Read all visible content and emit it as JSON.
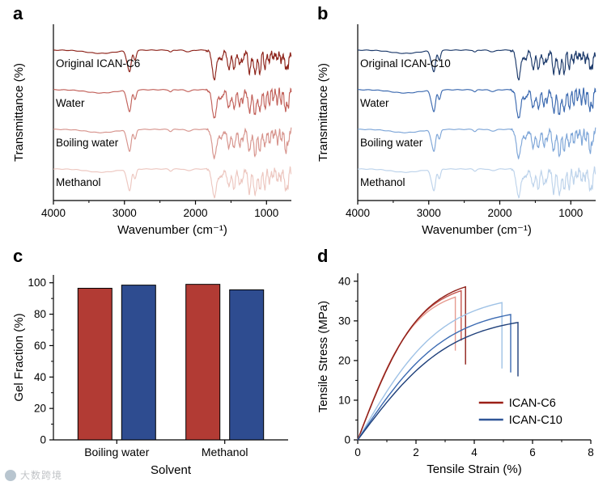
{
  "figure": {
    "background": "#ffffff",
    "panels": [
      {
        "id": "a",
        "label": "a"
      },
      {
        "id": "b",
        "label": "b"
      },
      {
        "id": "c",
        "label": "c"
      },
      {
        "id": "d",
        "label": "d"
      }
    ]
  },
  "chart_data": [
    {
      "panel": "a",
      "type": "line",
      "subtype": "ftir-spectra",
      "xlabel": "Wavenumber (cm⁻¹)",
      "ylabel": "Transmittance (%)",
      "xlim": [
        4000,
        650
      ],
      "x_ticks": [
        4000,
        3000,
        2000,
        1000
      ],
      "x_minor_ticks": [
        3500,
        2500,
        1500
      ],
      "series": [
        {
          "name": "Original ICAN-C6",
          "color": "#8e241b"
        },
        {
          "name": "Water",
          "color": "#c2615a"
        },
        {
          "name": "Boiling water",
          "color": "#d7948d"
        },
        {
          "name": "Methanol",
          "color": "#edc7c0"
        }
      ],
      "peak_features": [
        [
          3330,
          0.08,
          200
        ],
        [
          2957,
          0.26,
          24
        ],
        [
          2922,
          0.42,
          20
        ],
        [
          2852,
          0.24,
          18
        ],
        [
          2350,
          0.05,
          20
        ],
        [
          2100,
          0.04,
          40
        ],
        [
          1736,
          0.7,
          30
        ],
        [
          1645,
          0.22,
          28
        ],
        [
          1532,
          0.45,
          22
        ],
        [
          1456,
          0.48,
          20
        ],
        [
          1378,
          0.38,
          16
        ],
        [
          1335,
          0.3,
          14
        ],
        [
          1240,
          0.58,
          20
        ],
        [
          1160,
          0.62,
          20
        ],
        [
          1095,
          0.52,
          18
        ],
        [
          1022,
          0.48,
          16
        ],
        [
          958,
          0.32,
          13
        ],
        [
          905,
          0.25,
          12
        ],
        [
          845,
          0.3,
          12
        ],
        [
          795,
          0.33,
          12
        ],
        [
          730,
          0.52,
          15
        ],
        [
          695,
          0.42,
          12
        ]
      ]
    },
    {
      "panel": "b",
      "type": "line",
      "subtype": "ftir-spectra",
      "xlabel": "Wavenumber (cm⁻¹)",
      "ylabel": "Transmittance (%)",
      "xlim": [
        4000,
        650
      ],
      "x_ticks": [
        4000,
        3000,
        2000,
        1000
      ],
      "x_minor_ticks": [
        3500,
        2500,
        1500
      ],
      "series": [
        {
          "name": "Original ICAN-C10",
          "color": "#1c3a6b"
        },
        {
          "name": "Water",
          "color": "#3c6ab0"
        },
        {
          "name": "Boiling water",
          "color": "#7ea6d8"
        },
        {
          "name": "Methanol",
          "color": "#bdd3eb"
        }
      ],
      "peak_features": [
        [
          3330,
          0.08,
          200
        ],
        [
          2957,
          0.26,
          24
        ],
        [
          2922,
          0.42,
          20
        ],
        [
          2852,
          0.24,
          18
        ],
        [
          2350,
          0.05,
          20
        ],
        [
          2100,
          0.04,
          40
        ],
        [
          1736,
          0.7,
          30
        ],
        [
          1645,
          0.22,
          28
        ],
        [
          1532,
          0.45,
          22
        ],
        [
          1456,
          0.48,
          20
        ],
        [
          1378,
          0.38,
          16
        ],
        [
          1335,
          0.3,
          14
        ],
        [
          1240,
          0.58,
          20
        ],
        [
          1160,
          0.62,
          20
        ],
        [
          1095,
          0.52,
          18
        ],
        [
          1022,
          0.48,
          16
        ],
        [
          958,
          0.32,
          13
        ],
        [
          905,
          0.25,
          12
        ],
        [
          845,
          0.3,
          12
        ],
        [
          795,
          0.33,
          12
        ],
        [
          730,
          0.52,
          15
        ],
        [
          695,
          0.42,
          12
        ]
      ]
    },
    {
      "panel": "c",
      "type": "bar",
      "xlabel": "Solvent",
      "ylabel": "Gel Fraction (%)",
      "ylim": [
        0,
        105
      ],
      "y_ticks": [
        0,
        20,
        40,
        60,
        80,
        100
      ],
      "y_minor_ticks": [
        10,
        30,
        50,
        70,
        90
      ],
      "categories": [
        "Boiling water",
        "Methanol"
      ],
      "series": [
        {
          "name": "ICAN-C6",
          "color": "#b23b34",
          "values": [
            96.5,
            99
          ]
        },
        {
          "name": "ICAN-C10",
          "color": "#2e4c90",
          "values": [
            98.5,
            95.5
          ]
        }
      ]
    },
    {
      "panel": "d",
      "type": "line",
      "subtype": "stress-strain",
      "xlabel": "Tensile Strain (%)",
      "ylabel": "Tensile Stress (MPa)",
      "xlim": [
        0,
        8
      ],
      "ylim": [
        0,
        42
      ],
      "x_ticks": [
        0,
        2,
        4,
        6,
        8
      ],
      "x_minor_ticks": [
        1,
        3,
        5,
        7
      ],
      "y_ticks": [
        0,
        10,
        20,
        30,
        40
      ],
      "y_minor_ticks": [
        5,
        15,
        25,
        35
      ],
      "legend": [
        {
          "label": "ICAN-C6",
          "color": "#9b1f17"
        },
        {
          "label": "ICAN-C10",
          "color": "#2f5597"
        }
      ],
      "curves": [
        {
          "group": "ICAN-C6",
          "color": "#e69b90",
          "break_strain": 3.35,
          "max_stress": 36.0,
          "drop_to": 22.5
        },
        {
          "group": "ICAN-C6",
          "color": "#c4564e",
          "break_strain": 3.55,
          "max_stress": 37.6,
          "drop_to": 25.0
        },
        {
          "group": "ICAN-C6",
          "color": "#8f1f18",
          "break_strain": 3.7,
          "max_stress": 38.6,
          "drop_to": 19.0
        },
        {
          "group": "ICAN-C10",
          "color": "#9fc2e6",
          "break_strain": 4.95,
          "max_stress": 34.6,
          "drop_to": 18.0
        },
        {
          "group": "ICAN-C10",
          "color": "#3b6ab2",
          "break_strain": 5.25,
          "max_stress": 31.6,
          "drop_to": 17.0
        },
        {
          "group": "ICAN-C10",
          "color": "#1e3f7a",
          "break_strain": 5.5,
          "max_stress": 29.6,
          "drop_to": 16.0
        }
      ]
    }
  ],
  "watermark": {
    "text": "大数跨境",
    "logo": "circle-logo"
  }
}
